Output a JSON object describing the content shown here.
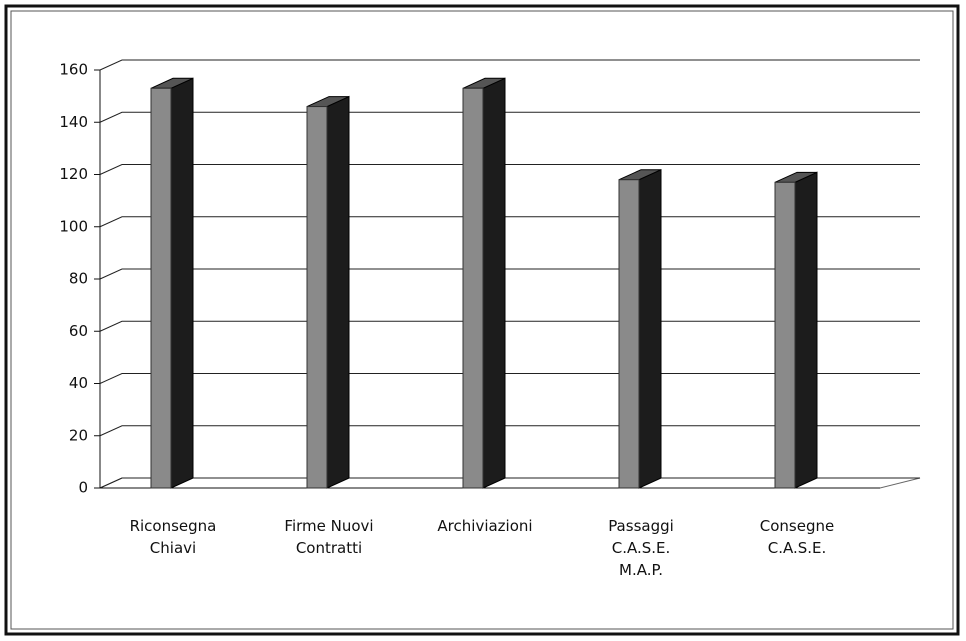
{
  "chart_data": {
    "type": "bar3d",
    "categories": [
      "Riconsegna Chiavi",
      "Firme Nuovi Contratti",
      "Archiviazioni",
      "Passaggi C.A.S.E. M.A.P.",
      "Consegne C.A.S.E."
    ],
    "values": [
      153,
      146,
      153,
      118,
      117
    ],
    "color": "#8a8a8a",
    "ylim": [
      0,
      160
    ],
    "yticks": [
      0,
      20,
      40,
      60,
      80,
      100,
      120,
      140,
      160
    ],
    "grid": true
  }
}
